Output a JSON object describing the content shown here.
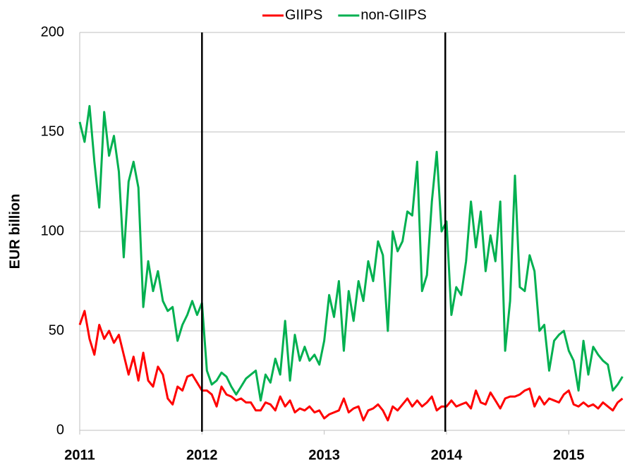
{
  "chart_data": {
    "type": "line",
    "ylabel": "EUR billion",
    "x": [
      2011,
      2011.04,
      2011.08,
      2011.12,
      2011.16,
      2011.2,
      2011.24,
      2011.28,
      2011.32,
      2011.36,
      2011.4,
      2011.44,
      2011.48,
      2011.52,
      2011.56,
      2011.6,
      2011.64,
      2011.68,
      2011.72,
      2011.76,
      2011.8,
      2011.84,
      2011.88,
      2011.92,
      2011.96,
      2012,
      2012.04,
      2012.08,
      2012.12,
      2012.16,
      2012.2,
      2012.24,
      2012.28,
      2012.32,
      2012.36,
      2012.4,
      2012.44,
      2012.48,
      2012.52,
      2012.56,
      2012.6,
      2012.64,
      2012.68,
      2012.72,
      2012.76,
      2012.8,
      2012.84,
      2012.88,
      2012.92,
      2012.96,
      2013,
      2013.04,
      2013.08,
      2013.12,
      2013.16,
      2013.2,
      2013.24,
      2013.28,
      2013.32,
      2013.36,
      2013.4,
      2013.44,
      2013.48,
      2013.52,
      2013.56,
      2013.6,
      2013.64,
      2013.68,
      2013.72,
      2013.76,
      2013.8,
      2013.84,
      2013.88,
      2013.92,
      2013.96,
      2014,
      2014.04,
      2014.08,
      2014.12,
      2014.16,
      2014.2,
      2014.24,
      2014.28,
      2014.32,
      2014.36,
      2014.4,
      2014.44,
      2014.48,
      2014.52,
      2014.56,
      2014.6,
      2014.64,
      2014.68,
      2014.72,
      2014.76,
      2014.8,
      2014.84,
      2014.88,
      2014.92,
      2014.96,
      2015,
      2015.04,
      2015.08,
      2015.12,
      2015.16,
      2015.2,
      2015.24,
      2015.28,
      2015.32,
      2015.36,
      2015.4,
      2015.44
    ],
    "series": [
      {
        "name": "GIIPS",
        "color": "#ff0000",
        "values": [
          53,
          60,
          46,
          38,
          53,
          46,
          50,
          44,
          48,
          38,
          28,
          37,
          25,
          39,
          25,
          22,
          32,
          28,
          16,
          13,
          22,
          20,
          27,
          28,
          24,
          20,
          20,
          18,
          12,
          22,
          18,
          17,
          15,
          16,
          14,
          14,
          10,
          10,
          14,
          13,
          10,
          17,
          12,
          15,
          9,
          11,
          10,
          12,
          9,
          10,
          6,
          8,
          9,
          10,
          16,
          9,
          11,
          12,
          5,
          10,
          11,
          13,
          10,
          5,
          12,
          10,
          13,
          16,
          12,
          15,
          12,
          14,
          17,
          10,
          12,
          12,
          15,
          12,
          13,
          14,
          11,
          20,
          14,
          13,
          19,
          15,
          11,
          16,
          17,
          17,
          18,
          20,
          21,
          12,
          17,
          13,
          16,
          15,
          14,
          18,
          20,
          13,
          12,
          14,
          12,
          13,
          11,
          14,
          12,
          10,
          14,
          16
        ]
      },
      {
        "name": "non-GIIPS",
        "color": "#00b050",
        "values": [
          155,
          145,
          163,
          135,
          112,
          160,
          138,
          148,
          130,
          87,
          125,
          135,
          122,
          62,
          85,
          70,
          80,
          65,
          60,
          62,
          45,
          53,
          58,
          65,
          58,
          64,
          30,
          23,
          25,
          29,
          27,
          22,
          18,
          22,
          26,
          28,
          30,
          15,
          28,
          24,
          36,
          28,
          55,
          25,
          48,
          35,
          42,
          35,
          38,
          33,
          45,
          68,
          57,
          75,
          40,
          70,
          55,
          75,
          65,
          85,
          75,
          95,
          88,
          50,
          100,
          90,
          95,
          110,
          108,
          135,
          70,
          78,
          115,
          140,
          100,
          105,
          58,
          72,
          68,
          85,
          115,
          92,
          110,
          80,
          98,
          85,
          115,
          40,
          65,
          128,
          72,
          70,
          88,
          80,
          50,
          53,
          30,
          45,
          48,
          50,
          40,
          35,
          20,
          45,
          28,
          42,
          38,
          35,
          33,
          20,
          23,
          27
        ]
      }
    ],
    "xlim": [
      2011,
      2015.46
    ],
    "xticks": [
      2011,
      2012,
      2013,
      2014,
      2015
    ],
    "ylim": [
      0,
      200
    ],
    "yticks": [
      0,
      50,
      100,
      150,
      200
    ],
    "vlines": [
      2012,
      2013.99
    ],
    "vline_color": "#000000",
    "grid": true,
    "legend": "top"
  }
}
